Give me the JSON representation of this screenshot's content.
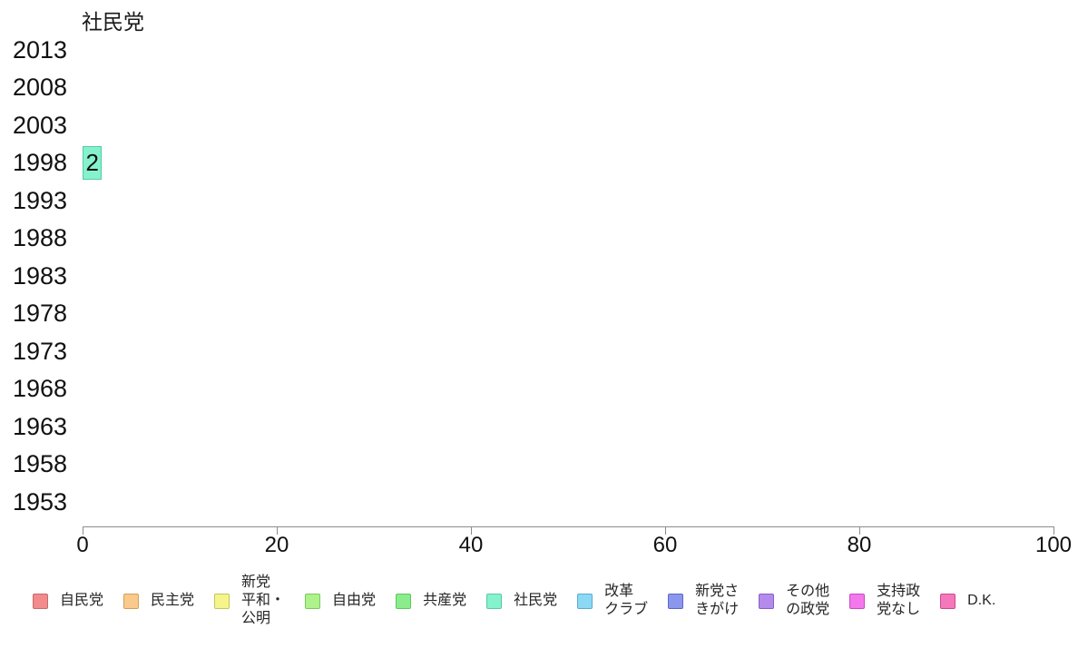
{
  "title": "社民党",
  "chart_data": {
    "type": "bar",
    "orientation": "horizontal",
    "title": "社民党",
    "categories": [
      "2013",
      "2008",
      "2003",
      "1998",
      "1993",
      "1988",
      "1983",
      "1978",
      "1973",
      "1968",
      "1963",
      "1958",
      "1953"
    ],
    "series": [
      {
        "name": "社民党",
        "values": [
          null,
          null,
          null,
          2,
          null,
          null,
          null,
          null,
          null,
          null,
          null,
          null,
          null
        ],
        "color": "#85F2CE",
        "border_color": "#58C9A4"
      }
    ],
    "xlim": [
      0,
      100
    ],
    "xticks": [
      0,
      20,
      40,
      60,
      80,
      100
    ],
    "bar_labels": true,
    "grid": false,
    "legend_position": "bottom",
    "axis_line_color": "#8c8c8c",
    "text_color": "#111111"
  },
  "legend": {
    "items": [
      {
        "label": "自民党",
        "color": "#F28B8B",
        "border": "#C96A6A"
      },
      {
        "label": "民主党",
        "color": "#FBC98B",
        "border": "#CFA05C"
      },
      {
        "label": "新党\n平和・\n公明",
        "color": "#F5F58B",
        "border": "#C4C45C"
      },
      {
        "label": "自由党",
        "color": "#AEF28B",
        "border": "#7BC95C"
      },
      {
        "label": "共産党",
        "color": "#8BEC8B",
        "border": "#5CC95C"
      },
      {
        "label": "社民党",
        "color": "#85F2CE",
        "border": "#58C9A4"
      },
      {
        "label": "改革\nクラブ",
        "color": "#8BD9F5",
        "border": "#5CABC9"
      },
      {
        "label": "新党さ\nきがけ",
        "color": "#8B97EC",
        "border": "#5C66C9"
      },
      {
        "label": "その他\nの政党",
        "color": "#B38BEC",
        "border": "#8A5CC9"
      },
      {
        "label": "支持政\n党なし",
        "color": "#F278EC",
        "border": "#C94AC4"
      },
      {
        "label": "D.K.",
        "color": "#F578BC",
        "border": "#C94A8E"
      }
    ]
  }
}
